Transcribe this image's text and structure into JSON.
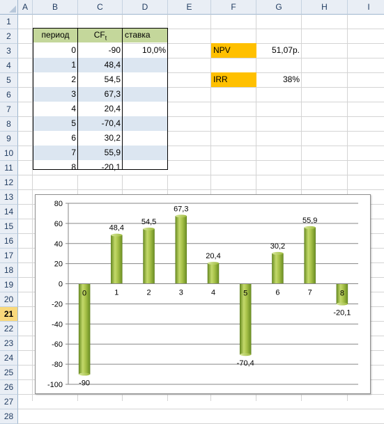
{
  "columns": [
    "A",
    "B",
    "C",
    "D",
    "E",
    "F",
    "G",
    "H",
    "I"
  ],
  "rows": [
    "1",
    "2",
    "3",
    "4",
    "5",
    "6",
    "7",
    "8",
    "9",
    "10",
    "11",
    "12",
    "13",
    "14",
    "15",
    "16",
    "17",
    "18",
    "19",
    "20",
    "21",
    "22",
    "23",
    "24",
    "25",
    "26",
    "27",
    "28"
  ],
  "active_row": "21",
  "table": {
    "headers": {
      "period": "период",
      "cf_base": "CF",
      "cf_sub": "t",
      "rate": "ставка"
    },
    "periods": [
      "0",
      "1",
      "2",
      "3",
      "4",
      "5",
      "6",
      "7",
      "8"
    ],
    "cashflows": [
      "-90",
      "48,4",
      "54,5",
      "67,3",
      "20,4",
      "-70,4",
      "30,2",
      "55,9",
      "-20,1"
    ],
    "rate_value": "10,0%"
  },
  "results": {
    "npv_label": "NPV",
    "npv_value": "51,07р.",
    "irr_label": "IRR",
    "irr_value": "38%"
  },
  "colors": {
    "header_fill": "#c4d79b",
    "band_fill": "#dce6f1",
    "result_fill": "#ffc000",
    "bar_light": "#c3d96b",
    "bar_dark": "#6b8e23"
  },
  "chart_data": {
    "type": "bar",
    "categories": [
      "0",
      "1",
      "2",
      "3",
      "4",
      "5",
      "6",
      "7",
      "8"
    ],
    "values": [
      -90,
      48.4,
      54.5,
      67.3,
      20.4,
      -70.4,
      30.2,
      55.9,
      -20.1
    ],
    "data_labels": [
      "-90",
      "48,4",
      "54,5",
      "67,3",
      "20,4",
      "-70,4",
      "30,2",
      "55,9",
      "-20,1"
    ],
    "ylim": [
      -100,
      80
    ],
    "yticks": [
      "-100",
      "-80",
      "-60",
      "-40",
      "-20",
      "0",
      "20",
      "40",
      "60",
      "80"
    ],
    "grid": true,
    "title": "",
    "xlabel": "",
    "ylabel": ""
  }
}
